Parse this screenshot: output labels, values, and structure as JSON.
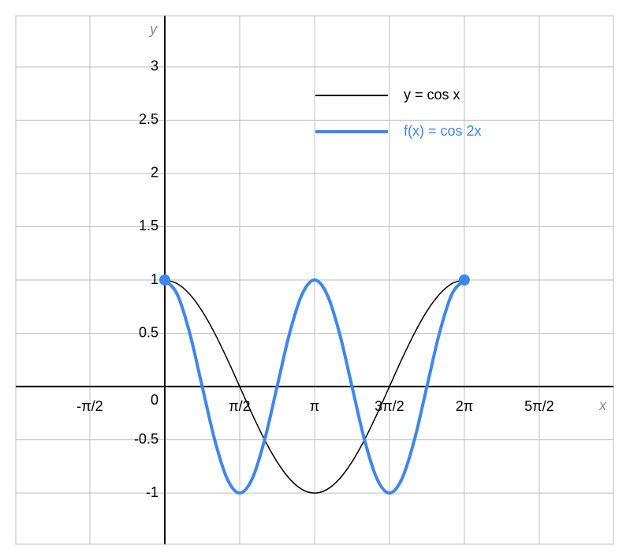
{
  "chart_data": {
    "type": "line",
    "x_label": "x",
    "y_label": "y",
    "x": [
      0,
      0.262,
      0.524,
      0.785,
      1.047,
      1.309,
      1.571,
      1.833,
      2.094,
      2.356,
      2.618,
      2.88,
      3.142,
      3.403,
      3.665,
      3.927,
      4.189,
      4.451,
      4.712,
      4.974,
      5.236,
      5.498,
      5.76,
      6.021,
      6.283
    ],
    "series": [
      {
        "name": "y = cos x",
        "color": "#000000",
        "values": [
          1,
          0.966,
          0.866,
          0.707,
          0.5,
          0.259,
          0,
          -0.259,
          -0.5,
          -0.707,
          -0.866,
          -0.966,
          -1,
          -0.966,
          -0.866,
          -0.707,
          -0.5,
          -0.259,
          0,
          0.259,
          0.5,
          0.707,
          0.866,
          0.966,
          1
        ]
      },
      {
        "name": "f(x) = cos 2x",
        "color": "#3f86ec",
        "values": [
          1,
          0.866,
          0.5,
          0,
          -0.5,
          -0.866,
          -1,
          -0.866,
          -0.5,
          0,
          0.5,
          0.866,
          1,
          0.866,
          0.5,
          0,
          -0.5,
          -0.866,
          -1,
          -0.866,
          -0.5,
          0,
          0.5,
          0.866,
          1
        ],
        "endpoint_markers": true
      }
    ],
    "xlim": [
      -3.125,
      9.41
    ],
    "ylim": [
      -1.48,
      3.48
    ],
    "xticks": [
      {
        "value": -1.571,
        "label": "-π/2"
      },
      {
        "value": 1.571,
        "label": "π/2"
      },
      {
        "value": 3.142,
        "label": "π"
      },
      {
        "value": 4.712,
        "label": "3π/2"
      },
      {
        "value": 6.283,
        "label": "2π"
      },
      {
        "value": 7.854,
        "label": "5π/2"
      }
    ],
    "yticks": [
      -1,
      -0.5,
      0,
      0.5,
      1,
      1.5,
      2,
      2.5,
      3
    ],
    "grid": true
  }
}
